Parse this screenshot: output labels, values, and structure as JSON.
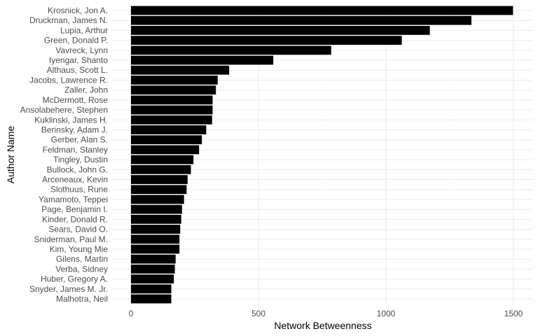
{
  "chart_data": {
    "type": "bar",
    "orientation": "horizontal",
    "title": "",
    "xlabel": "Network Betweenness",
    "ylabel": "Author Name",
    "xlim": [
      0,
      1500
    ],
    "x_ticks": [
      0,
      500,
      1000,
      1500
    ],
    "x_tick_labels": [
      "0",
      "500",
      "1000",
      "1500"
    ],
    "grid": true,
    "legend": "none",
    "bar_color": "#000000",
    "categories": [
      "Krosnick, Jon A.",
      "Druckman, James N.",
      "Lupia, Arthur",
      "Green, Donald P.",
      "Vavreck, Lynn",
      "Iyengar, Shanto",
      "Althaus, Scott L.",
      "Jacobs, Lawrence R.",
      "Zaller, John",
      "McDermott, Rose",
      "Ansolabehere, Stephen",
      "Kuklinski, James H.",
      "Berinsky, Adam J.",
      "Gerber, Alan S.",
      "Feldman, Stanley",
      "Tingley, Dustin",
      "Bullock, John G.",
      "Arceneaux, Kevin",
      "Slothuus, Rune",
      "Yamamoto, Teppei",
      "Page, Benjamin I.",
      "Kinder, Donald R.",
      "Sears, David O.",
      "Sniderman, Paul M.",
      "Kim, Young Mie",
      "Gilens, Martin",
      "Verba, Sidney",
      "Huber, Gregory A.",
      "Snyder, James M. Jr.",
      "Malhotra, Neil"
    ],
    "values": [
      1498,
      1335,
      1172,
      1062,
      785,
      558,
      385,
      340,
      333,
      320,
      320,
      318,
      295,
      278,
      267,
      245,
      235,
      222,
      218,
      208,
      200,
      197,
      193,
      190,
      190,
      175,
      172,
      168,
      158,
      158
    ]
  }
}
